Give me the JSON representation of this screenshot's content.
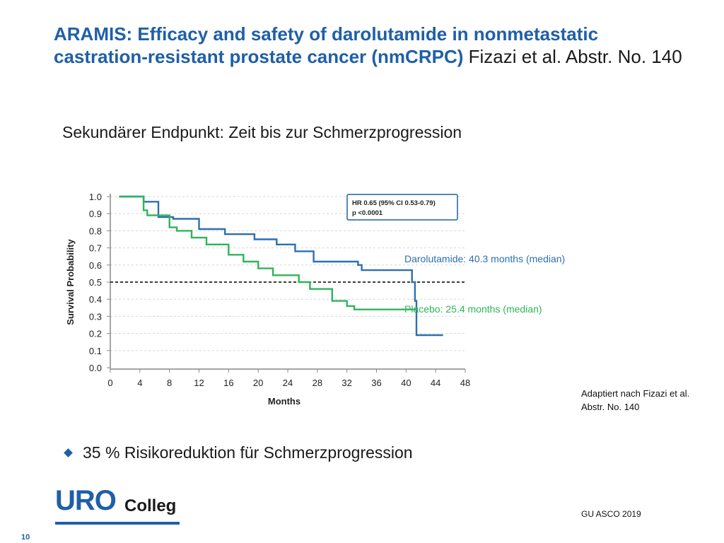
{
  "slide": {
    "title_bold": "ARAMIS: Efficacy and safety of darolutamide in nonmetastatic castration-resistant prostate cancer (nmCRPC)",
    "title_ref": "Fizazi et al. Abstr. No.  140",
    "subtitle": "Sekundärer Endpunkt: Zeit bis zur Schmerzprogression",
    "source_note": "Adaptiert nach Fizazi et al. Abstr. No. 140",
    "bullet": "35 % Risikoreduktion für Schmerzprogression",
    "logo_uro": "URO",
    "logo_colleg": "Colleg",
    "footer": "GU ASCO 2019",
    "page_number": "10"
  },
  "chart_data": {
    "type": "line",
    "xlabel": "Months",
    "ylabel": "Survival Probability",
    "xlim": [
      0,
      48
    ],
    "ylim": [
      0,
      1.0
    ],
    "xticks": [
      0,
      4,
      8,
      12,
      16,
      20,
      24,
      28,
      32,
      36,
      40,
      44,
      48
    ],
    "yticks": [
      0.0,
      0.1,
      0.2,
      0.3,
      0.4,
      0.5,
      0.6,
      0.7,
      0.8,
      0.9,
      1.0
    ],
    "grid": true,
    "reference_line": 0.5,
    "annotation": {
      "line1": "HR 0.65 (95% CI 0.53-0.79)",
      "line2": "p <0.0001"
    },
    "series": [
      {
        "name": "Darolutamide: 40.3 months (median)",
        "color": "#2e6fb0",
        "x": [
          1.2,
          4.5,
          4.5,
          6.5,
          6.5,
          8.5,
          8.5,
          12,
          12,
          15.5,
          15.5,
          19.5,
          19.5,
          22.5,
          22.5,
          25,
          25,
          27.5,
          27.5,
          33.5,
          33.5,
          34,
          34,
          40.8,
          40.8,
          41.2,
          41.2,
          41.4,
          41.4,
          45
        ],
        "y": [
          1.0,
          1.0,
          0.97,
          0.97,
          0.88,
          0.88,
          0.87,
          0.87,
          0.81,
          0.81,
          0.78,
          0.78,
          0.75,
          0.75,
          0.72,
          0.72,
          0.68,
          0.68,
          0.62,
          0.62,
          0.6,
          0.6,
          0.57,
          0.57,
          0.5,
          0.5,
          0.39,
          0.39,
          0.19,
          0.19
        ]
      },
      {
        "name": "Placebo: 25.4 months (median)",
        "color": "#2fb45a",
        "x": [
          1.2,
          4.5,
          4.5,
          5,
          5,
          8,
          8,
          9,
          9,
          11,
          11,
          13,
          13,
          16,
          16,
          18,
          18,
          20,
          20,
          22,
          22,
          25.5,
          25.5,
          27,
          27,
          30,
          30,
          32,
          32,
          33,
          33,
          41.5
        ],
        "y": [
          1.0,
          1.0,
          0.92,
          0.92,
          0.89,
          0.89,
          0.82,
          0.82,
          0.8,
          0.8,
          0.76,
          0.76,
          0.72,
          0.72,
          0.66,
          0.66,
          0.62,
          0.62,
          0.58,
          0.58,
          0.54,
          0.54,
          0.5,
          0.5,
          0.46,
          0.46,
          0.39,
          0.39,
          0.36,
          0.36,
          0.34,
          0.34
        ]
      }
    ]
  }
}
